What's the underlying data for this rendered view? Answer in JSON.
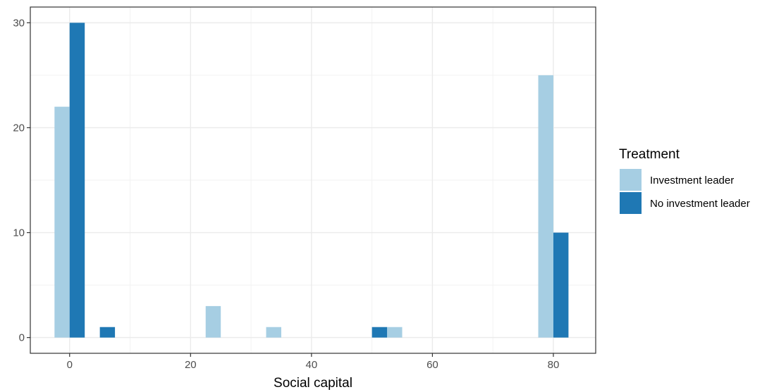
{
  "chart_data": {
    "type": "bar",
    "xlabel": "Social capital",
    "ylabel": "",
    "xlim": [
      -6.5,
      87
    ],
    "ylim": [
      -1.5,
      31.5
    ],
    "x_ticks": [
      0,
      20,
      40,
      60,
      80
    ],
    "y_ticks": [
      0,
      10,
      20,
      30
    ],
    "x_tick_labels": [
      "0",
      "20",
      "40",
      "60",
      "80"
    ],
    "y_tick_labels": [
      "0",
      "10",
      "20",
      "30"
    ],
    "bar_width": 2.5,
    "grid": true,
    "legend_title": "Treatment",
    "legend_position": "right",
    "series": [
      {
        "name": "Investment leader",
        "color": "#a6cee3",
        "x": [
          -1.25,
          23.75,
          33.75,
          53.75,
          78.75
        ],
        "values": [
          22,
          3,
          1,
          1,
          25
        ]
      },
      {
        "name": "No investment leader",
        "color": "#1f78b4",
        "x": [
          1.25,
          6.25,
          51.25,
          81.25
        ],
        "values": [
          30,
          1,
          1,
          10
        ]
      }
    ]
  }
}
